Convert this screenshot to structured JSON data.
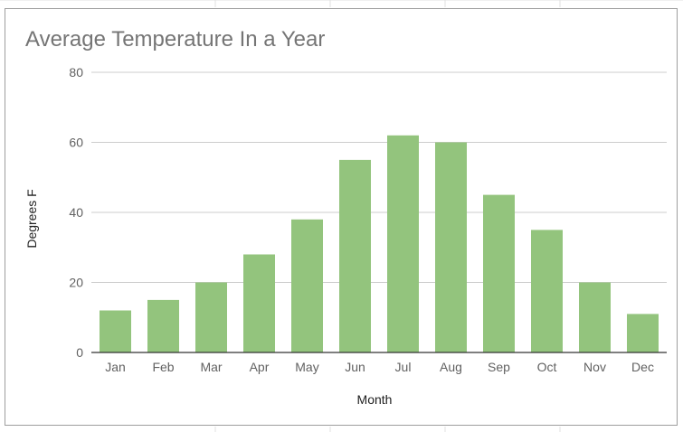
{
  "chart_data": {
    "type": "bar",
    "title": "Average Temperature In a Year",
    "xlabel": "Month",
    "ylabel": "Degrees F",
    "categories": [
      "Jan",
      "Feb",
      "Mar",
      "Apr",
      "May",
      "Jun",
      "Jul",
      "Aug",
      "Sep",
      "Oct",
      "Nov",
      "Dec"
    ],
    "values": [
      12,
      15,
      20,
      28,
      38,
      55,
      62,
      60,
      45,
      35,
      20,
      11
    ],
    "ylim": [
      0,
      80
    ],
    "yticks": [
      0,
      20,
      40,
      60,
      80
    ],
    "grid": true,
    "legend": "none",
    "colors": {
      "bar": "#93c47d",
      "grid": "#cccccc",
      "axis": "#333333"
    }
  }
}
